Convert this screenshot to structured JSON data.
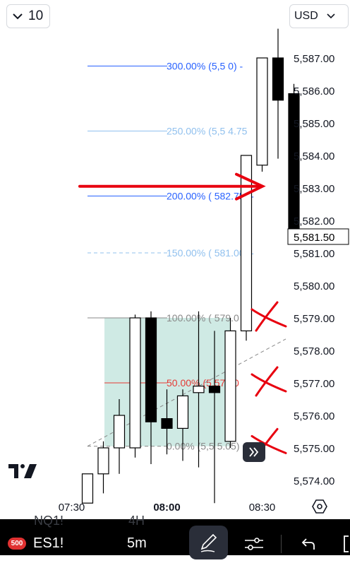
{
  "toolbar": {
    "interval_label": "10",
    "currency_label": "USD"
  },
  "bottom_bar": {
    "symbol_badge": "500",
    "symbol": "ES1!",
    "timeframe": "5m",
    "ghost_symbol": "NQ1!",
    "ghost_timeframe": "4H",
    "icons": [
      "chevron-down-icon",
      "pencil-icon",
      "sliders-icon",
      "undo-icon",
      "expand-icon",
      "double-chevron-right-icon",
      "hexagon-settings-icon",
      "tradingview-logo"
    ]
  },
  "colors": {
    "fib_blue": "#2962ff",
    "fib_lightblue": "#90c0ee",
    "fib_gray": "#8a8a8a",
    "fib_red": "#e53935",
    "fib_fill": "#cfeae4",
    "annotation_red": "#e8000f",
    "bull_fill": "#ffffff",
    "bear_fill": "#000000"
  },
  "chart_data": {
    "type": "candlestick",
    "x_tick_labels": [
      "07:30",
      "08:00",
      "08:30"
    ],
    "x_tick_times": [
      "07:30",
      "08:00",
      "08:30"
    ],
    "y_range": [
      5573.6,
      5588.6
    ],
    "y_tick_labels": [
      "5,574.00",
      "5,575.00",
      "5,576.00",
      "5,577.00",
      "5,578.00",
      "5,579.00",
      "5,580.00",
      "5,581.00",
      "5,582.00",
      "5,583.00",
      "5,584.00",
      "5,585.00",
      "5,586.00",
      "5,587.00"
    ],
    "y_ticks": [
      5574,
      5575,
      5576,
      5577,
      5578,
      5579,
      5580,
      5581,
      5582,
      5583,
      5584,
      5585,
      5586,
      5587
    ],
    "last_price_label": "5,581.50",
    "last_price": 5581.5,
    "candles": [
      {
        "time": "07:30",
        "open": 5573.3,
        "high": 5574.2,
        "low": 5573.3,
        "close": 5574.2
      },
      {
        "time": "07:35",
        "open": 5574.2,
        "high": 5575.2,
        "low": 5573.6,
        "close": 5575.0
      },
      {
        "time": "07:40",
        "open": 5575.0,
        "high": 5576.5,
        "low": 5574.2,
        "close": 5576.0
      },
      {
        "time": "07:45",
        "open": 5575.0,
        "high": 5579.1,
        "low": 5574.7,
        "close": 5579.0
      },
      {
        "time": "07:50",
        "open": 5579.0,
        "high": 5579.2,
        "low": 5574.5,
        "close": 5575.8
      },
      {
        "time": "07:55",
        "open": 5575.9,
        "high": 5576.8,
        "low": 5574.8,
        "close": 5575.6
      },
      {
        "time": "08:00",
        "open": 5575.6,
        "high": 5576.8,
        "low": 5574.6,
        "close": 5576.6
      },
      {
        "time": "08:05",
        "open": 5576.7,
        "high": 5579.2,
        "low": 5574.4,
        "close": 5576.9
      },
      {
        "time": "08:10",
        "open": 5576.9,
        "high": 5578.6,
        "low": 5573.3,
        "close": 5576.7
      },
      {
        "time": "08:15",
        "open": 5575.2,
        "high": 5579.0,
        "low": 5575.0,
        "close": 5578.6
      },
      {
        "time": "08:20",
        "open": 5578.6,
        "high": 5584.0,
        "low": 5578.3,
        "close": 5584.0
      },
      {
        "time": "08:25",
        "open": 5583.7,
        "high": 5587.0,
        "low": 5583.5,
        "close": 5587.0
      },
      {
        "time": "08:30",
        "open": 5587.0,
        "high": 5587.9,
        "low": 5583.9,
        "close": 5585.7
      },
      {
        "time": "08:35",
        "open": 5585.9,
        "high": 5586.2,
        "low": 5581.5,
        "close": 5581.5
      }
    ],
    "fib_levels": [
      {
        "label": "300.00% (5,5",
        "label_tail": "0) -",
        "level": 3.0,
        "value": 5586.75
      },
      {
        "label": "250.00% (5,5",
        "label_tail": "4.75",
        "level": 2.5,
        "value": 5584.75
      },
      {
        "label": "200.00% (",
        "label_tail": "582.75) -",
        "level": 2.0,
        "value": 5582.75
      },
      {
        "label": "150.00% (",
        "label_tail": "581.00) -",
        "level": 1.5,
        "value": 5581.0
      },
      {
        "label": "100.00% (",
        "label_tail": "579.0",
        "level": 1.0,
        "value": 5579.0
      },
      {
        "label": "50.00%",
        "label_tail": "(5,577.0",
        "level": 0.5,
        "value": 5577.0
      },
      {
        "label": "0.00% (5,5",
        "label_tail": "5.05) -",
        "level": 0.0,
        "value": 5575.05
      }
    ]
  }
}
